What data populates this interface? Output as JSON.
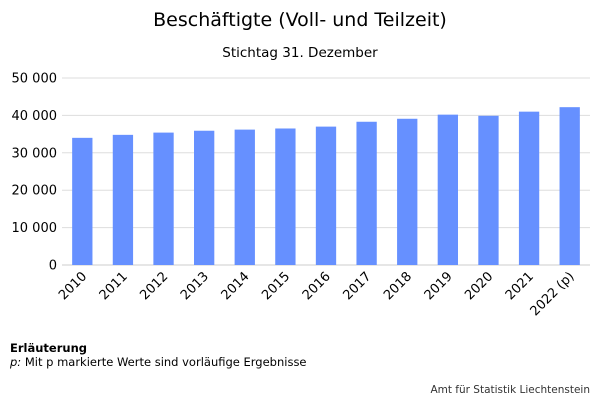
{
  "chart_data": {
    "type": "bar",
    "title": "Beschäftigte (Voll- und Teilzeit)",
    "subtitle": "Stichtag 31. Dezember",
    "categories": [
      "2010",
      "2011",
      "2012",
      "2013",
      "2014",
      "2015",
      "2016",
      "2017",
      "2018",
      "2019",
      "2020",
      "2021",
      "2022 (p)"
    ],
    "values": [
      34000,
      34800,
      35400,
      35900,
      36200,
      36500,
      37000,
      38300,
      39100,
      40200,
      39900,
      41000,
      42200
    ],
    "ylim": [
      0,
      50000
    ],
    "yticks": [
      0,
      10000,
      20000,
      30000,
      40000,
      50000
    ],
    "ytick_labels": [
      "0",
      "10 000",
      "20 000",
      "30 000",
      "40 000",
      "50 000"
    ],
    "grid": true,
    "bar_color": "#6690ff",
    "grid_color": "#dddddd"
  },
  "note": {
    "heading": "Erläuterung",
    "key": "p:",
    "text": "Mit p markierte Werte sind vorläufige Ergebnisse"
  },
  "source": "Amt für Statistik Liechtenstein"
}
